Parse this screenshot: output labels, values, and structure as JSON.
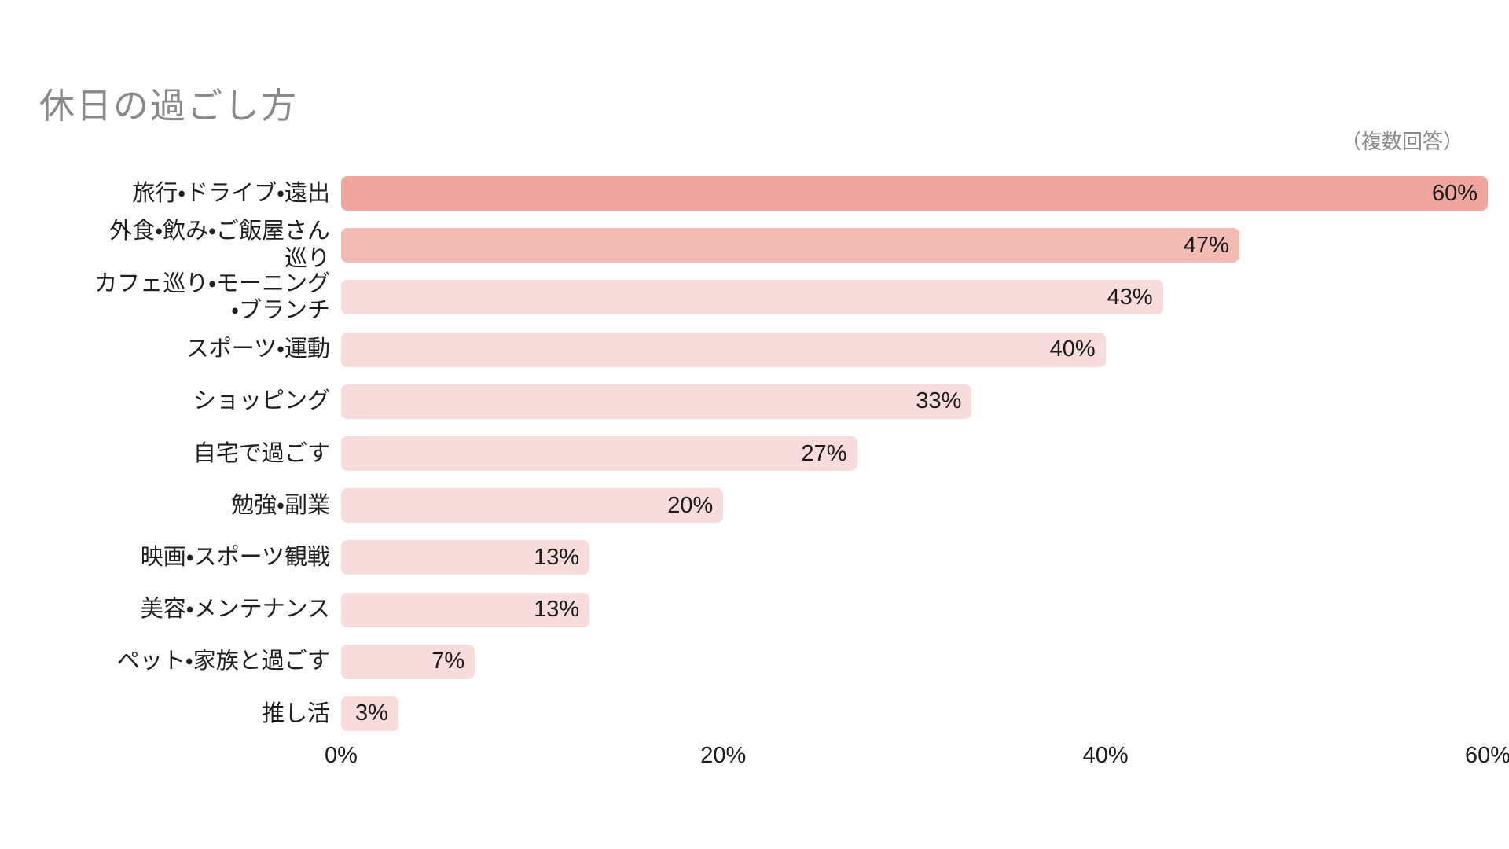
{
  "header": {
    "title": "休日の過ごし方",
    "note": "（複数回答）"
  },
  "colors": {
    "bar_top1": "#F0A69E",
    "bar_top2": "#F2BCB4",
    "bar_rest": "#F8DBDB",
    "title_gray": "#8A8A8A",
    "text_dark": "#1F1F1F",
    "background": "#FFFFFF"
  },
  "chart_data": {
    "type": "bar",
    "orientation": "horizontal",
    "title": "休日の過ごし方",
    "annotation": "（複数回答）",
    "categories": [
      "旅行・ドライブ・遠出",
      "外食・飲み・ご飯屋さん\n巡り",
      "カフェ巡り・モーニング\n・ブランチ",
      "スポーツ・運動",
      "ショッピング",
      "自宅で過ごす",
      "勉強・副業",
      "映画・スポーツ観戦",
      "美容・メンテナンス",
      "ペット・家族と過ごす",
      "推し活"
    ],
    "values": [
      60,
      47,
      43,
      40,
      33,
      27,
      20,
      13,
      13,
      7,
      3
    ],
    "value_labels": [
      "60%",
      "47%",
      "43%",
      "40%",
      "33%",
      "27%",
      "20%",
      "13%",
      "13%",
      "7%",
      "3%"
    ],
    "bar_colors": [
      "#F0A69E",
      "#F2BCB4",
      "#F8DBDB",
      "#F8DBDB",
      "#F8DBDB",
      "#F8DBDB",
      "#F8DBDB",
      "#F8DBDB",
      "#F8DBDB",
      "#F8DBDB",
      "#F8DBDB"
    ],
    "xlabel": "",
    "ylabel": "",
    "xlim": [
      0,
      60
    ],
    "x_ticks": [
      {
        "label": "0%",
        "value": 0
      },
      {
        "label": "20%",
        "value": 20
      },
      {
        "label": "40%",
        "value": 40
      },
      {
        "label": "60%",
        "value": 60
      }
    ],
    "grid": false,
    "legend": false,
    "value_label_position": "inside-end"
  }
}
